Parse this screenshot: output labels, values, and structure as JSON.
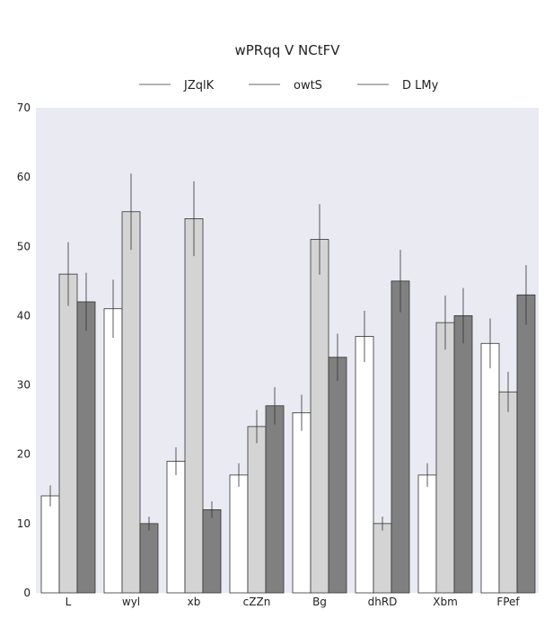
{
  "chart_data": {
    "type": "bar",
    "title": "wPRqq V NCtFV",
    "xlabel": "",
    "ylabel": "",
    "ylim": [
      0,
      70
    ],
    "yticks": [
      0,
      10,
      20,
      30,
      40,
      50,
      60,
      70
    ],
    "categories": [
      "L",
      "wyl",
      "xb",
      "cZZn",
      "Bg",
      "dhRD",
      "Xbm",
      "FPef"
    ],
    "series": [
      {
        "name": "JZqlK",
        "color": "#ffffff",
        "values": [
          14,
          41,
          19,
          17,
          26,
          37,
          17,
          36
        ],
        "errors": [
          1.5,
          4.2,
          2.0,
          1.7,
          2.6,
          3.7,
          1.7,
          3.6
        ]
      },
      {
        "name": "owtS",
        "color": "#d4d4d4",
        "values": [
          46,
          55,
          54,
          24,
          51,
          10,
          39,
          29
        ],
        "errors": [
          4.6,
          5.5,
          5.4,
          2.4,
          5.1,
          1.0,
          3.9,
          2.9
        ]
      },
      {
        "name": "D LMy",
        "color": "#808080",
        "values": [
          42,
          10,
          12,
          27,
          34,
          45,
          40,
          43
        ],
        "errors": [
          4.2,
          1.0,
          1.2,
          2.7,
          3.4,
          4.5,
          4.0,
          4.3
        ]
      }
    ],
    "legend_position": "top-center",
    "grid": false,
    "background": "#eaeaf2"
  }
}
